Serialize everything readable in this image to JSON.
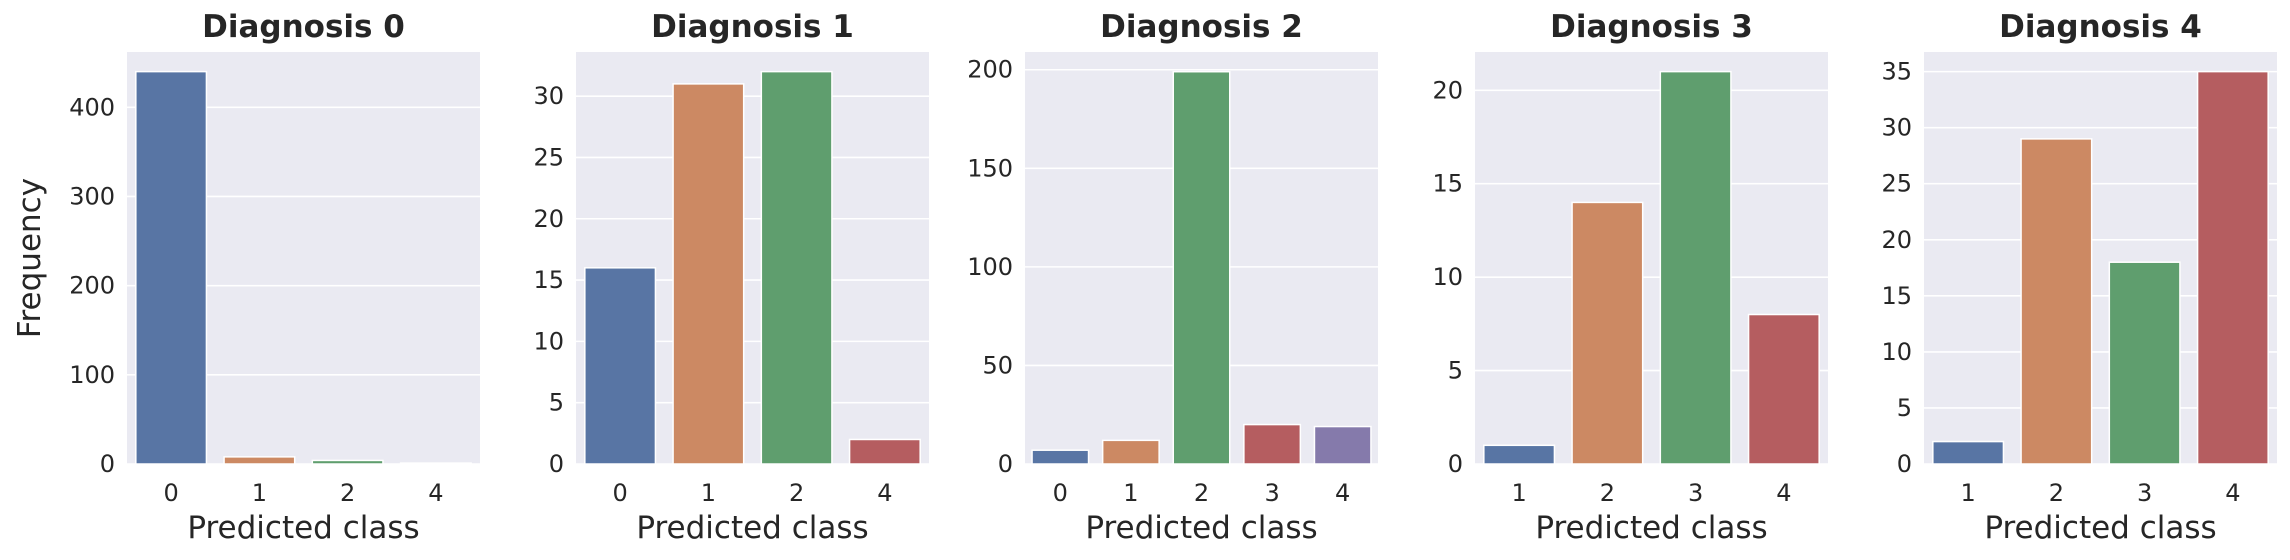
{
  "chart_data": [
    {
      "type": "bar",
      "title": "Diagnosis 0",
      "xlabel": "Predicted class",
      "ylabel": "Frequency",
      "categories": [
        "0",
        "1",
        "2",
        "4"
      ],
      "values": [
        440,
        8,
        4,
        1
      ],
      "colors": [
        "#5875a4",
        "#cc8963",
        "#5f9e6e",
        "#b55d60"
      ],
      "ylim": [
        0,
        462
      ],
      "yticks": [
        0,
        100,
        200,
        300,
        400
      ],
      "grid": true
    },
    {
      "type": "bar",
      "title": "Diagnosis 1",
      "xlabel": "Predicted class",
      "ylabel": "",
      "categories": [
        "0",
        "1",
        "2",
        "4"
      ],
      "values": [
        16,
        31,
        32,
        2
      ],
      "colors": [
        "#5875a4",
        "#cc8963",
        "#5f9e6e",
        "#b55d60"
      ],
      "ylim": [
        0,
        33.6
      ],
      "yticks": [
        0,
        5,
        10,
        15,
        20,
        25,
        30
      ],
      "grid": true
    },
    {
      "type": "bar",
      "title": "Diagnosis 2",
      "xlabel": "Predicted class",
      "ylabel": "",
      "categories": [
        "0",
        "1",
        "2",
        "3",
        "4"
      ],
      "values": [
        7,
        12,
        199,
        20,
        19
      ],
      "colors": [
        "#5875a4",
        "#cc8963",
        "#5f9e6e",
        "#b55d60",
        "#857aab"
      ],
      "ylim": [
        0,
        209
      ],
      "yticks": [
        0,
        50,
        100,
        150,
        200
      ],
      "grid": true
    },
    {
      "type": "bar",
      "title": "Diagnosis 3",
      "xlabel": "Predicted class",
      "ylabel": "",
      "categories": [
        "1",
        "2",
        "3",
        "4"
      ],
      "values": [
        1,
        14,
        21,
        8
      ],
      "colors": [
        "#5875a4",
        "#cc8963",
        "#5f9e6e",
        "#b55d60"
      ],
      "ylim": [
        0,
        22.05
      ],
      "yticks": [
        0,
        5,
        10,
        15,
        20
      ],
      "grid": true
    },
    {
      "type": "bar",
      "title": "Diagnosis 4",
      "xlabel": "Predicted class",
      "ylabel": "",
      "categories": [
        "1",
        "2",
        "3",
        "4"
      ],
      "values": [
        2,
        29,
        18,
        35
      ],
      "colors": [
        "#5875a4",
        "#cc8963",
        "#5f9e6e",
        "#b55d60"
      ],
      "ylim": [
        0,
        36.75
      ],
      "yticks": [
        0,
        5,
        10,
        15,
        20,
        25,
        30,
        35
      ],
      "grid": true
    }
  ]
}
